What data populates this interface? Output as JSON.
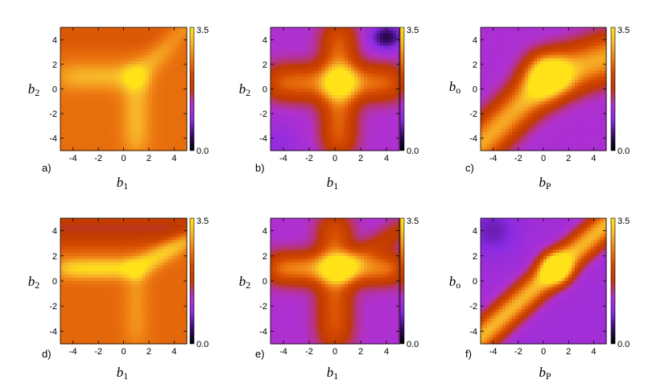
{
  "chart_data": [
    {
      "type": "heatmap",
      "panel_label": "a)",
      "xlabel": {
        "symbol": "b",
        "subscript": "1"
      },
      "ylabel": {
        "symbol": "b",
        "subscript": "2"
      },
      "xticks": [
        "-4",
        "-2",
        "0",
        "2",
        "4"
      ],
      "yticks": [
        "-4",
        "-2",
        "0",
        "2",
        "4"
      ],
      "xlim": [
        -5,
        5
      ],
      "ylim": [
        -5,
        5
      ],
      "colorbar": {
        "min": 0.0,
        "max": 3.5,
        "min_label": "0.0",
        "max_label": "3.5"
      },
      "colormap": [
        "#000000",
        "#3a0a6e",
        "#8a2be2",
        "#b030d0",
        "#c03a00",
        "#d44a00",
        "#ee7c12",
        "#f8b82a",
        "#ffe318"
      ],
      "field": {
        "base": 2.5,
        "features": [
          {
            "kind": "ridge_y",
            "center": 1.0,
            "width": 1.1,
            "amp": 0.55,
            "x_from": -5,
            "x_to": 1.2
          },
          {
            "kind": "ridge_x",
            "center": 1.0,
            "width": 1.1,
            "amp": 0.55,
            "y_from": -5,
            "y_to": 1.2
          },
          {
            "kind": "ridge_diag",
            "from": [
              1.0,
              1.0
            ],
            "to": [
              5,
              5
            ],
            "width": 0.9,
            "amp": 0.45
          },
          {
            "kind": "blob",
            "x": 1.0,
            "y": 1.0,
            "sx": 1.0,
            "sy": 1.0,
            "amp": 0.3
          },
          {
            "kind": "band_y",
            "from": 3.5,
            "to": 5,
            "amp": -0.3
          }
        ]
      }
    },
    {
      "type": "heatmap",
      "panel_label": "b)",
      "xlabel": {
        "symbol": "b",
        "subscript": "1"
      },
      "ylabel": {
        "symbol": "b",
        "subscript": "2"
      },
      "xticks": [
        "-4",
        "-2",
        "0",
        "2",
        "4"
      ],
      "yticks": [
        "-4",
        "-2",
        "0",
        "2",
        "4"
      ],
      "xlim": [
        -5,
        5
      ],
      "ylim": [
        -5,
        5
      ],
      "colorbar": {
        "min": 0.0,
        "max": 3.5,
        "min_label": "0.0",
        "max_label": "3.5"
      },
      "colormap": [
        "#000000",
        "#3a0a6e",
        "#8a2be2",
        "#b030d0",
        "#c03a00",
        "#d44a00",
        "#ee7c12",
        "#f8b82a",
        "#ffe318"
      ],
      "field": {
        "base": 1.3,
        "features": [
          {
            "kind": "ridge_y",
            "center": 0.5,
            "width": 1.4,
            "amp": 1.2,
            "x_from": -5,
            "x_to": 5
          },
          {
            "kind": "ridge_x",
            "center": 0.3,
            "width": 1.3,
            "amp": 1.1,
            "y_from": -5,
            "y_to": 5
          },
          {
            "kind": "blob",
            "x": 0.5,
            "y": 0.6,
            "sx": 1.3,
            "sy": 1.3,
            "amp": 0.8
          },
          {
            "kind": "blob",
            "x": 4.0,
            "y": 4.2,
            "sx": 1.2,
            "sy": 1.0,
            "amp": -1.0
          },
          {
            "kind": "blob",
            "x": -4.5,
            "y": -4.5,
            "sx": 2.0,
            "sy": 2.0,
            "amp": -0.3
          }
        ]
      }
    },
    {
      "type": "heatmap",
      "panel_label": "c)",
      "xlabel": {
        "symbol": "b",
        "subscript": "P"
      },
      "ylabel": {
        "symbol": "b",
        "subscript": "o"
      },
      "xticks": [
        "-4",
        "-2",
        "0",
        "2",
        "4"
      ],
      "yticks": [
        "-4",
        "-2",
        "0",
        "2",
        "4"
      ],
      "xlim": [
        -5,
        5
      ],
      "ylim": [
        -5,
        5
      ],
      "colorbar": {
        "min": 0.0,
        "max": 3.5,
        "min_label": "0.0",
        "max_label": "3.5"
      },
      "colormap": [
        "#000000",
        "#3a0a6e",
        "#8a2be2",
        "#b030d0",
        "#c03a00",
        "#d44a00",
        "#ee7c12",
        "#f8b82a",
        "#ffe318"
      ],
      "field": {
        "base": 1.25,
        "features": [
          {
            "kind": "ridge_diag",
            "from": [
              -5,
              -4.5
            ],
            "to": [
              0.5,
              1.0
            ],
            "width": 1.5,
            "amp": 1.7
          },
          {
            "kind": "ridge_diag",
            "from": [
              0.5,
              1.0
            ],
            "to": [
              5,
              2.5
            ],
            "width": 1.8,
            "amp": 1.7
          },
          {
            "kind": "blob",
            "x": 0.5,
            "y": 1.0,
            "sx": 1.6,
            "sy": 1.4,
            "amp": 0.6
          }
        ]
      }
    },
    {
      "type": "heatmap",
      "panel_label": "d)",
      "xlabel": {
        "symbol": "b",
        "subscript": "1"
      },
      "ylabel": {
        "symbol": "b",
        "subscript": "2"
      },
      "xticks": [
        "-4",
        "-2",
        "0",
        "2",
        "4"
      ],
      "yticks": [
        "-4",
        "-2",
        "0",
        "2",
        "4"
      ],
      "xlim": [
        -5,
        5
      ],
      "ylim": [
        -5,
        5
      ],
      "colorbar": {
        "min": 0.0,
        "max": 3.5,
        "min_label": "0.0",
        "max_label": "3.5"
      },
      "colormap": [
        "#000000",
        "#3a0a6e",
        "#8a2be2",
        "#b030d0",
        "#c03a00",
        "#d44a00",
        "#ee7c12",
        "#f8b82a",
        "#ffe318"
      ],
      "field": {
        "base": 2.45,
        "features": [
          {
            "kind": "ridge_y",
            "center": 1.0,
            "width": 0.8,
            "amp": 1.0,
            "x_from": -5,
            "x_to": 1.0
          },
          {
            "kind": "ridge_diag",
            "from": [
              1.0,
              1.0
            ],
            "to": [
              5,
              3.3
            ],
            "width": 0.8,
            "amp": 0.9
          },
          {
            "kind": "ridge_x",
            "center": 1.0,
            "width": 1.0,
            "amp": 0.35,
            "y_from": -5,
            "y_to": 1.0
          },
          {
            "kind": "band_y",
            "from": 3.4,
            "to": 5,
            "amp": -1.1
          }
        ]
      }
    },
    {
      "type": "heatmap",
      "panel_label": "e)",
      "xlabel": {
        "symbol": "b",
        "subscript": "1"
      },
      "ylabel": {
        "symbol": "b",
        "subscript": "2"
      },
      "xticks": [
        "-4",
        "-2",
        "0",
        "2",
        "4"
      ],
      "yticks": [
        "-4",
        "-2",
        "0",
        "2",
        "4"
      ],
      "xlim": [
        -5,
        5
      ],
      "ylim": [
        -5,
        5
      ],
      "colorbar": {
        "min": 0.0,
        "max": 3.5,
        "min_label": "0.0",
        "max_label": "3.5"
      },
      "colormap": [
        "#000000",
        "#3a0a6e",
        "#8a2be2",
        "#b030d0",
        "#c03a00",
        "#d44a00",
        "#ee7c12",
        "#f8b82a",
        "#ffe318"
      ],
      "field": {
        "base": 1.3,
        "features": [
          {
            "kind": "ridge_y",
            "center": 1.0,
            "width": 1.2,
            "amp": 1.4,
            "x_from": -5,
            "x_to": 5
          },
          {
            "kind": "ridge_x",
            "center": 0.0,
            "width": 1.3,
            "amp": 1.0,
            "y_from": -5,
            "y_to": 5
          },
          {
            "kind": "blob",
            "x": 0.3,
            "y": 1.0,
            "sx": 1.3,
            "sy": 1.0,
            "amp": 0.8
          },
          {
            "kind": "ridge_diag",
            "from": [
              0.5,
              1.0
            ],
            "to": [
              5,
              4.0
            ],
            "width": 0.9,
            "amp": 0.5
          }
        ]
      }
    },
    {
      "type": "heatmap",
      "panel_label": "f)",
      "xlabel": {
        "symbol": "b",
        "subscript": "P"
      },
      "ylabel": {
        "symbol": "b",
        "subscript": "o"
      },
      "xticks": [
        "-4",
        "-2",
        "0",
        "2",
        "4"
      ],
      "yticks": [
        "-4",
        "-2",
        "0",
        "2",
        "4"
      ],
      "xlim": [
        -5,
        5
      ],
      "ylim": [
        -5,
        5
      ],
      "colorbar": {
        "min": 0.0,
        "max": 3.5,
        "min_label": "0.0",
        "max_label": "3.5"
      },
      "colormap": [
        "#000000",
        "#3a0a6e",
        "#8a2be2",
        "#b030d0",
        "#c03a00",
        "#d44a00",
        "#ee7c12",
        "#f8b82a",
        "#ffe318"
      ],
      "field": {
        "base": 1.15,
        "features": [
          {
            "kind": "ridge_diag",
            "from": [
              -5,
              -4.5
            ],
            "to": [
              1.0,
              1.0
            ],
            "width": 1.1,
            "amp": 1.9
          },
          {
            "kind": "ridge_diag",
            "from": [
              1.0,
              1.0
            ],
            "to": [
              5,
              4.5
            ],
            "width": 1.1,
            "amp": 1.9
          },
          {
            "kind": "blob",
            "x": 1.0,
            "y": 1.0,
            "sx": 1.2,
            "sy": 1.2,
            "amp": 0.6
          },
          {
            "kind": "blob",
            "x": -4.0,
            "y": 4.0,
            "sx": 2.0,
            "sy": 2.0,
            "amp": -0.45
          }
        ]
      }
    }
  ]
}
